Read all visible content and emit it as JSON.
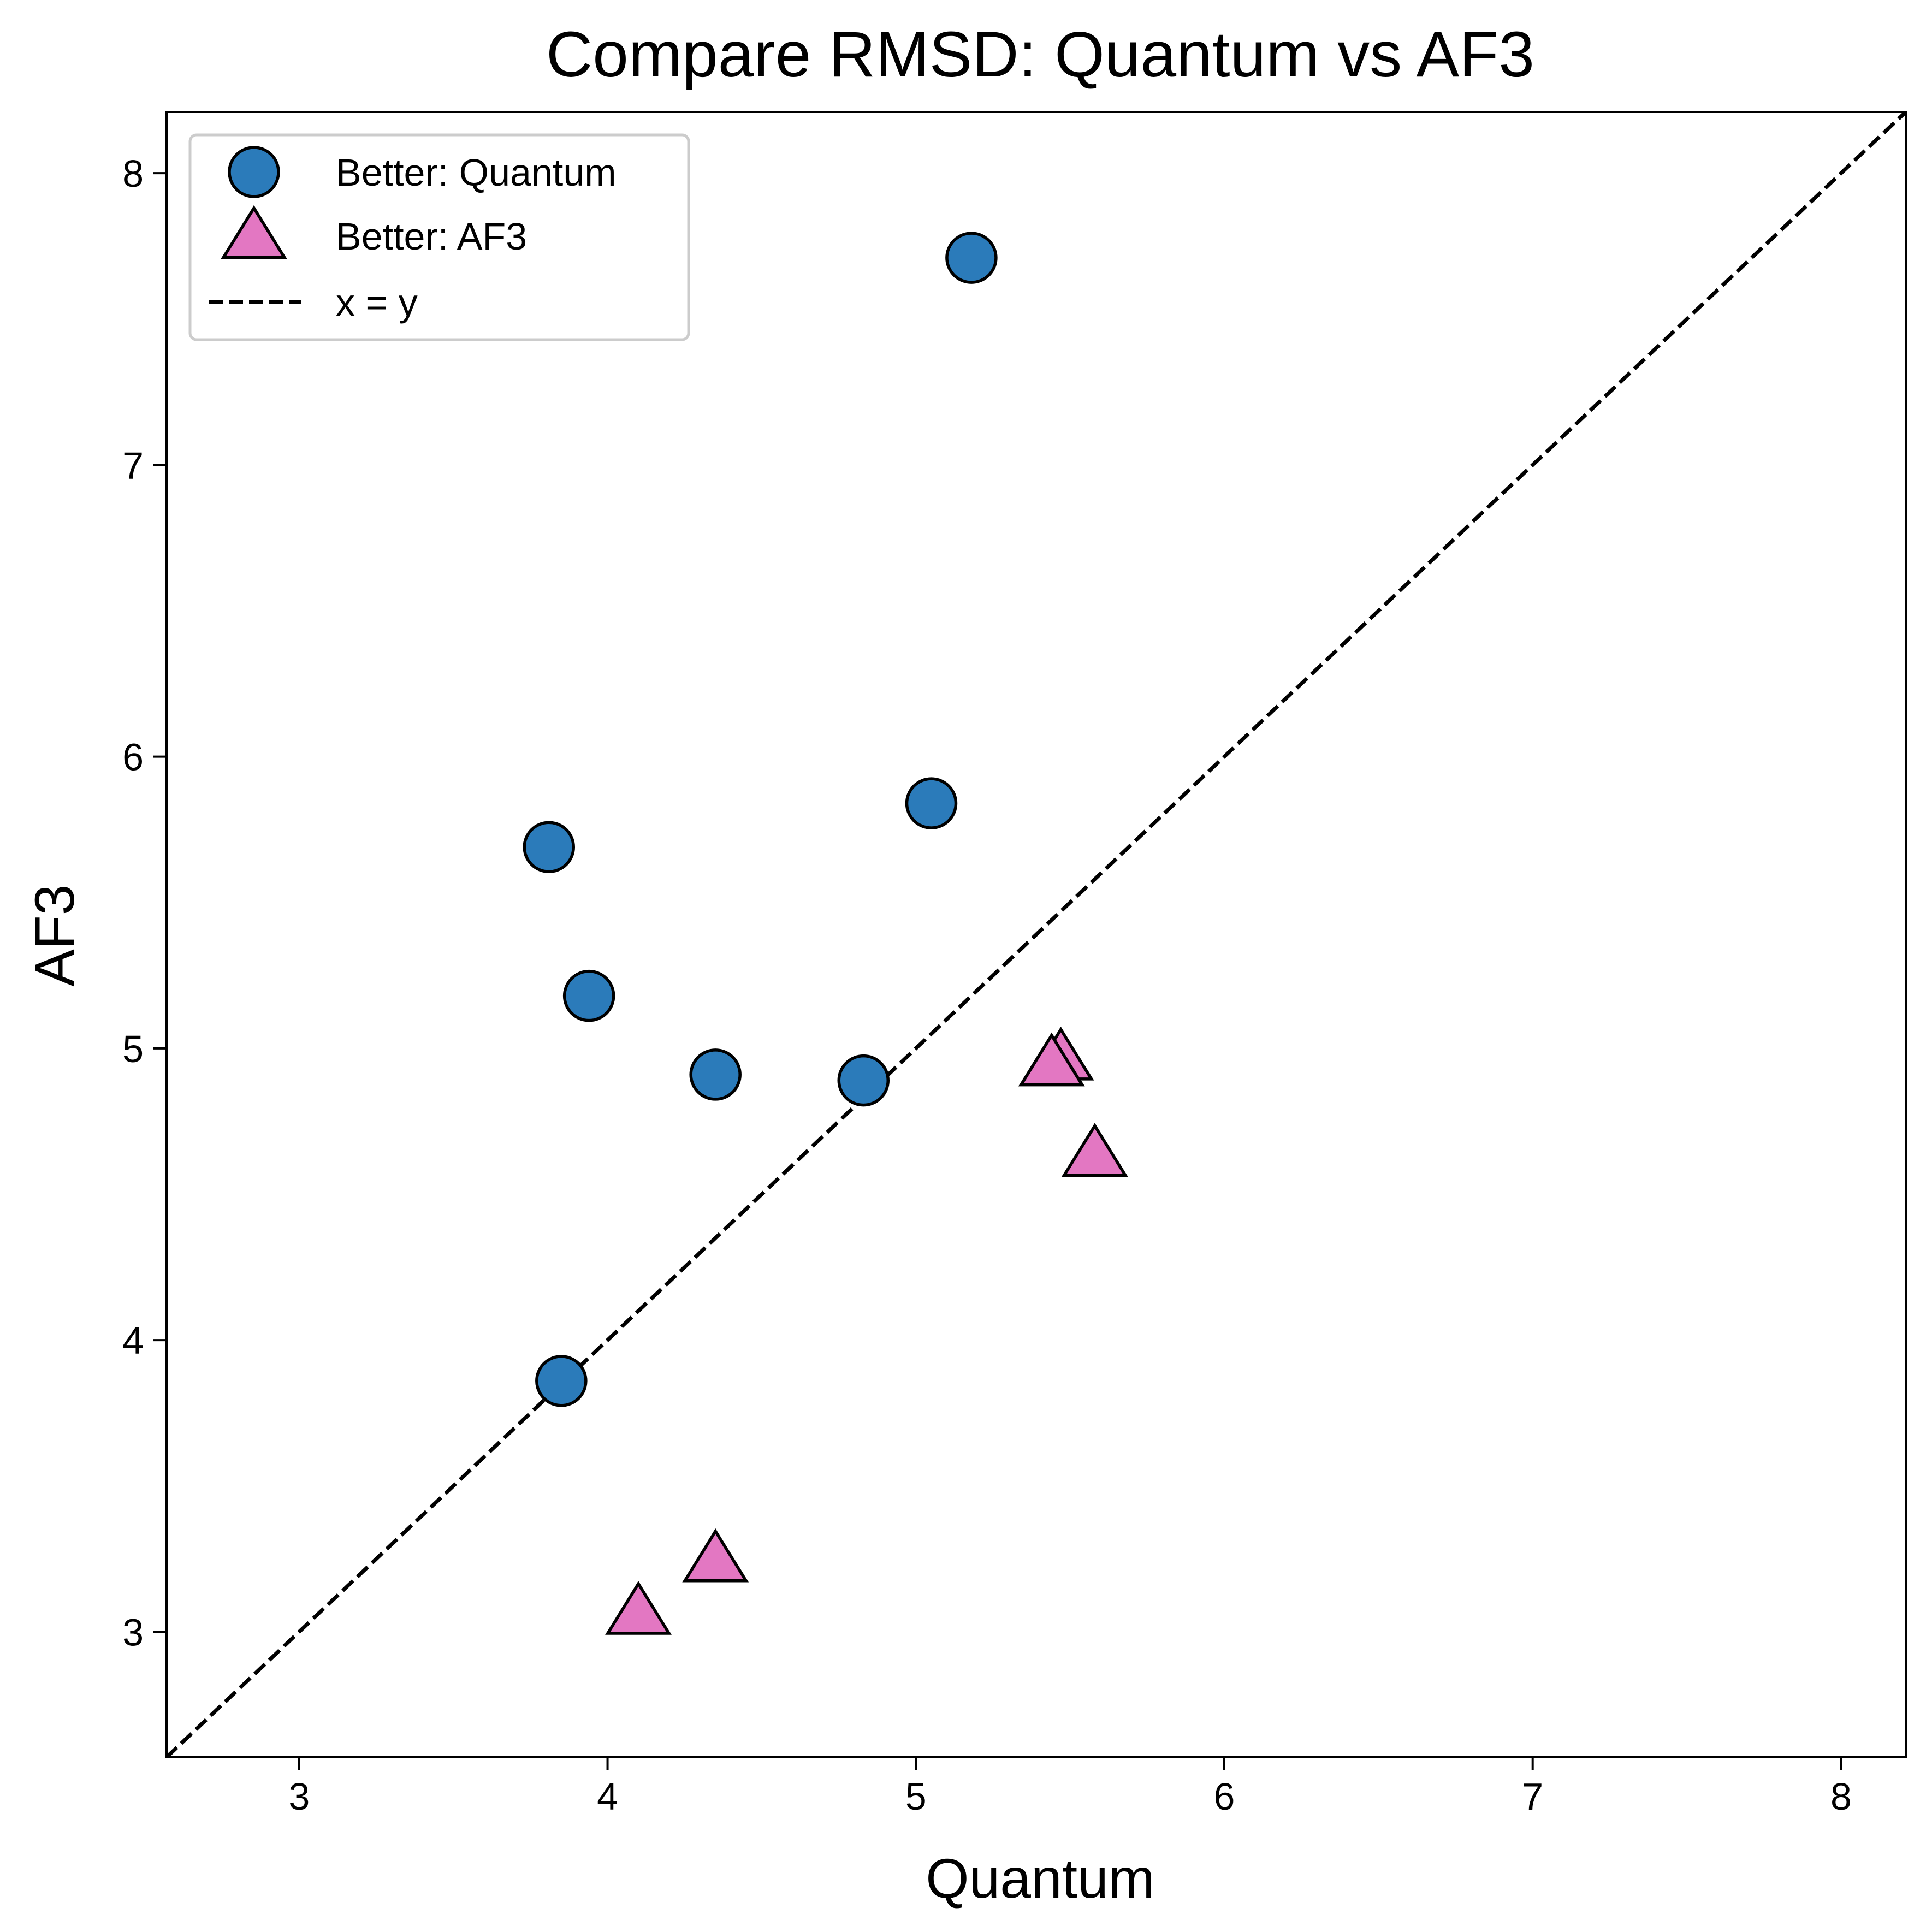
{
  "chart_data": {
    "type": "scatter",
    "title": "Compare RMSD: Quantum vs AF3",
    "xlabel": "Quantum",
    "ylabel": "AF3",
    "xlim": [
      2.57,
      8.21
    ],
    "ylim": [
      2.57,
      8.21
    ],
    "xticks": [
      3,
      4,
      5,
      6,
      7,
      8
    ],
    "yticks": [
      3,
      4,
      5,
      6,
      7,
      8
    ],
    "grid": false,
    "legend_position": "top-left",
    "series": [
      {
        "name": "Better: Quantum",
        "marker": "circle",
        "color": "#2b7bba",
        "points": [
          {
            "x": 5.18,
            "y": 7.71
          },
          {
            "x": 5.05,
            "y": 5.84
          },
          {
            "x": 3.81,
            "y": 5.69
          },
          {
            "x": 3.94,
            "y": 5.18
          },
          {
            "x": 4.35,
            "y": 4.91
          },
          {
            "x": 4.83,
            "y": 4.89
          },
          {
            "x": 3.85,
            "y": 3.86
          }
        ]
      },
      {
        "name": "Better: AF3",
        "marker": "triangle",
        "color": "#e377c2",
        "points": [
          {
            "x": 5.47,
            "y": 4.96
          },
          {
            "x": 5.44,
            "y": 4.94
          },
          {
            "x": 5.58,
            "y": 4.63
          },
          {
            "x": 4.35,
            "y": 3.24
          },
          {
            "x": 4.1,
            "y": 3.06
          }
        ]
      }
    ],
    "reference_line": {
      "name": "x = y",
      "style": "dashed",
      "color": "#000000"
    }
  }
}
